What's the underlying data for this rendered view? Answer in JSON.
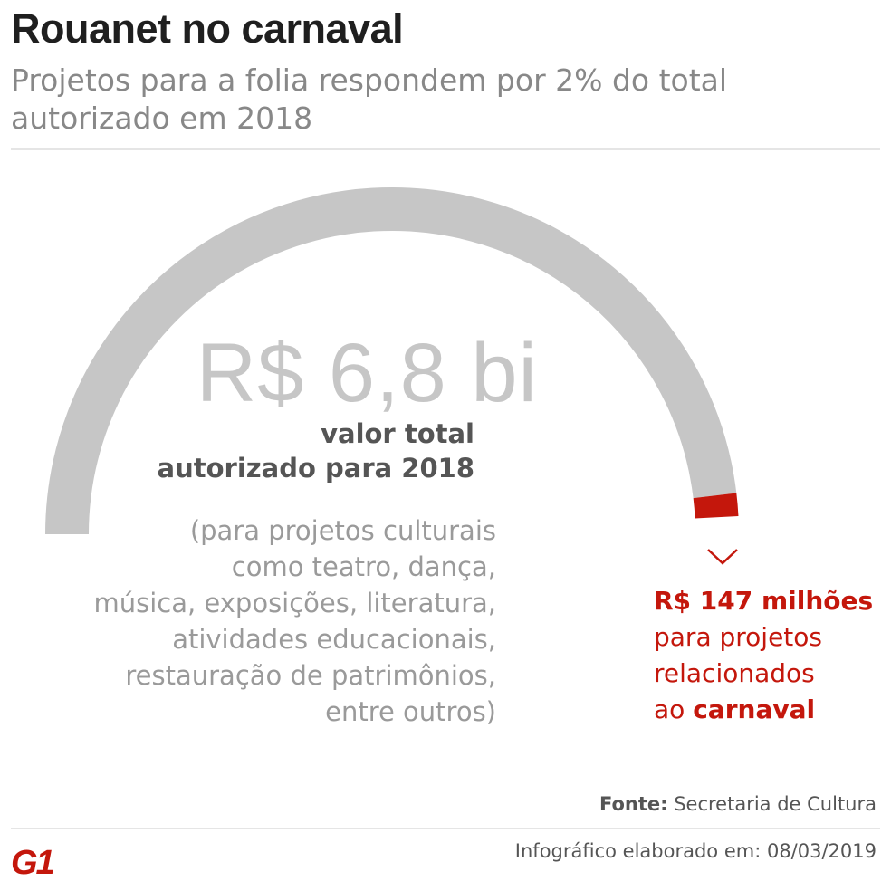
{
  "header": {
    "title": "Rouanet no carnaval",
    "subtitle": "Projetos para a folia respondem por 2% do total autorizado em 2018"
  },
  "chart_data": {
    "type": "gauge",
    "total": {
      "value_label": "R$ 6,8 bi",
      "value": 6800,
      "unit": "milhões de R$",
      "label_lines": [
        "valor total",
        "autorizado para 2018"
      ],
      "description_lines": [
        "(para projetos culturais",
        "como teatro, dança,",
        "música, exposições, literatura,",
        "atividades educacionais,",
        "restauração de patrimônios,",
        "entre outros)"
      ]
    },
    "highlight": {
      "value_label": "R$ 147 milhões",
      "value": 147,
      "text_line1": "para  projetos",
      "text_line2": "relacionados",
      "text_line3_prefix": "ao ",
      "text_line3_bold": "carnaval"
    },
    "colors": {
      "arc": "#c6c6c6",
      "highlight": "#c4170c"
    }
  },
  "footer": {
    "source_label": "Fonte:",
    "source_value": " Secretaria de Cultura",
    "date_text": "Infográfico elaborado em: 08/03/2019",
    "logo": "G1"
  }
}
